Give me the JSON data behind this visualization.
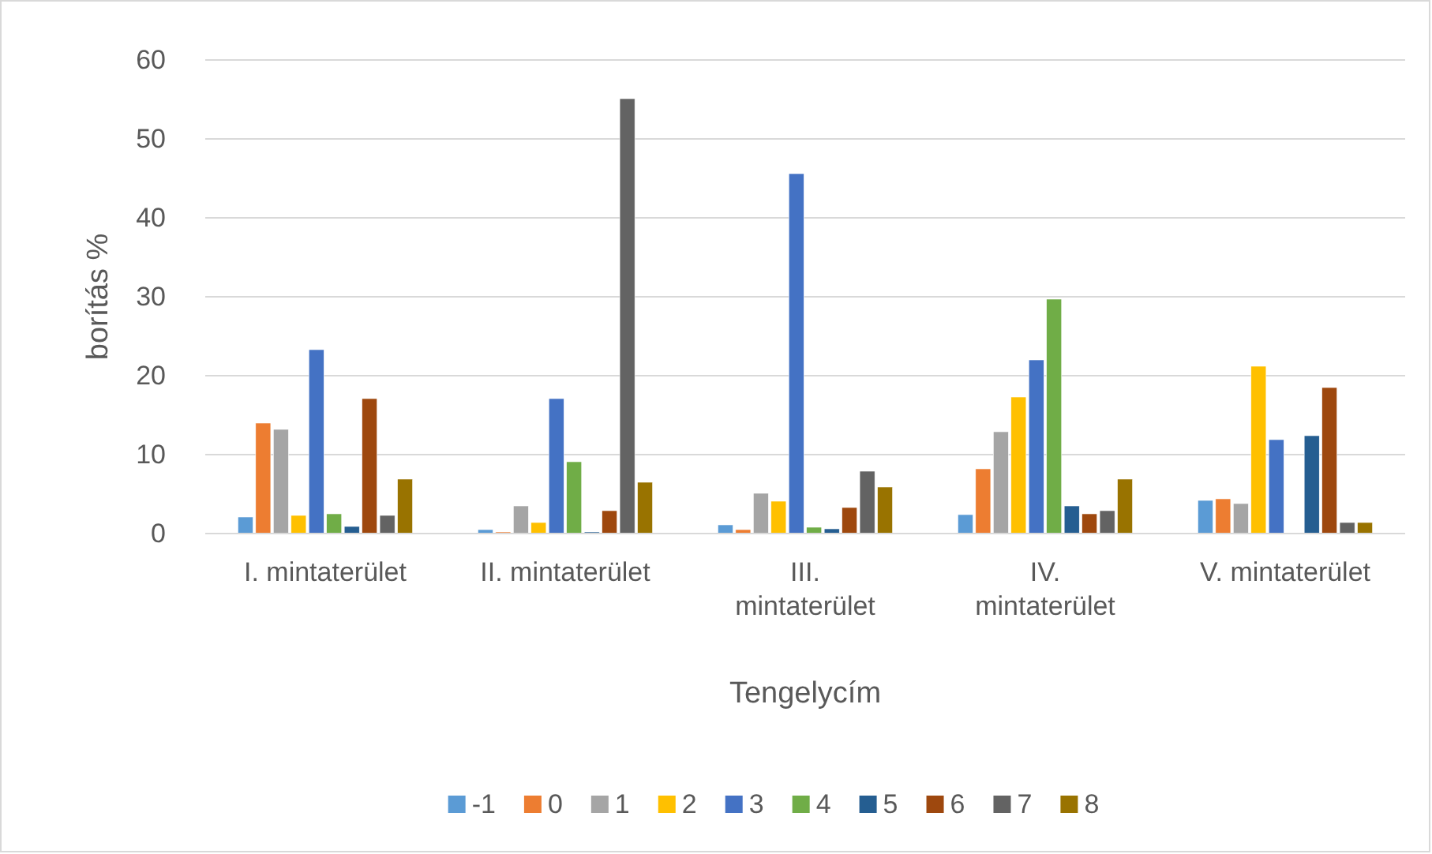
{
  "chart_data": {
    "type": "bar",
    "xlabel": "Tengelycím",
    "ylabel": "borítás %",
    "categories": [
      "I. mintaterület",
      "II. mintaterület",
      "III. mintaterület",
      "IV. mintaterület",
      "V. mintaterület"
    ],
    "ylim": [
      0,
      60
    ],
    "yticks": [
      0,
      10,
      20,
      30,
      40,
      50,
      60
    ],
    "grid": "y",
    "legend": "bottom",
    "series": [
      {
        "name": "-1",
        "color": "#5b9bd5",
        "values": [
          2.1,
          0.5,
          1.1,
          2.4,
          4.2
        ]
      },
      {
        "name": "0",
        "color": "#ed7d31",
        "values": [
          14,
          0.2,
          0.5,
          8.2,
          4.4
        ]
      },
      {
        "name": "1",
        "color": "#a5a5a5",
        "values": [
          13.2,
          3.5,
          5.1,
          12.9,
          3.8
        ]
      },
      {
        "name": "2",
        "color": "#ffc000",
        "values": [
          2.3,
          1.4,
          4.1,
          17.3,
          21.2
        ]
      },
      {
        "name": "3",
        "color": "#4472c4",
        "values": [
          23.3,
          17.1,
          45.6,
          22,
          11.9
        ]
      },
      {
        "name": "4",
        "color": "#70ad47",
        "values": [
          2.5,
          9.1,
          0.8,
          29.7,
          0
        ]
      },
      {
        "name": "5",
        "color": "#255e91",
        "values": [
          0.9,
          0.2,
          0.6,
          3.5,
          12.4
        ]
      },
      {
        "name": "6",
        "color": "#9e480e",
        "values": [
          17.1,
          2.9,
          3.3,
          2.5,
          18.5
        ]
      },
      {
        "name": "7",
        "color": "#636363",
        "values": [
          2.3,
          55.1,
          7.9,
          2.9,
          1.4
        ]
      },
      {
        "name": "8",
        "color": "#997300",
        "values": [
          6.9,
          6.5,
          5.9,
          6.9,
          1.4
        ]
      }
    ]
  }
}
